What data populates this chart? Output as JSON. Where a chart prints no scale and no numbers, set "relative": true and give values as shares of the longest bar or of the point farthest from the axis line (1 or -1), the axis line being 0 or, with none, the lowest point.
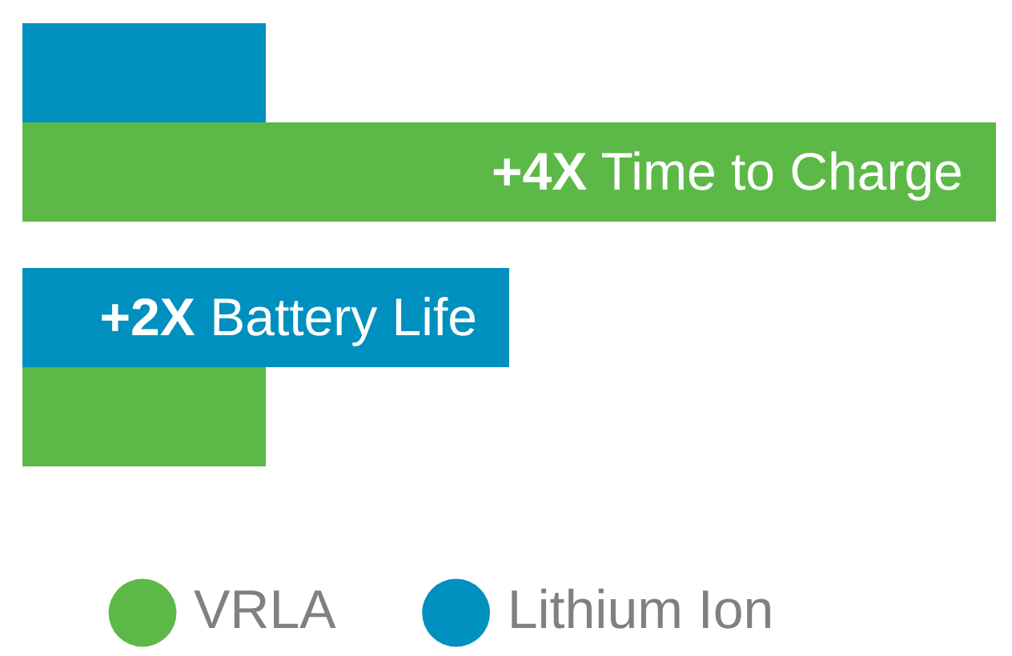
{
  "chart_data": {
    "type": "bar",
    "orientation": "horizontal",
    "relative": true,
    "categories": [
      null,
      null
    ],
    "legend": "bottom",
    "marker": "circle",
    "series": [
      {
        "name": "VRLA",
        "color": "#5cb947",
        "values": [
          1,
          0.25
        ]
      },
      {
        "name": "Lithium Ion",
        "color": "#0090bf",
        "values": [
          0.25,
          0.5
        ]
      }
    ],
    "annotations": [
      {
        "text": "+4X Time to Charge",
        "x": 1
      },
      {
        "text": "+2X Battery Life",
        "x": 0.5
      }
    ]
  }
}
